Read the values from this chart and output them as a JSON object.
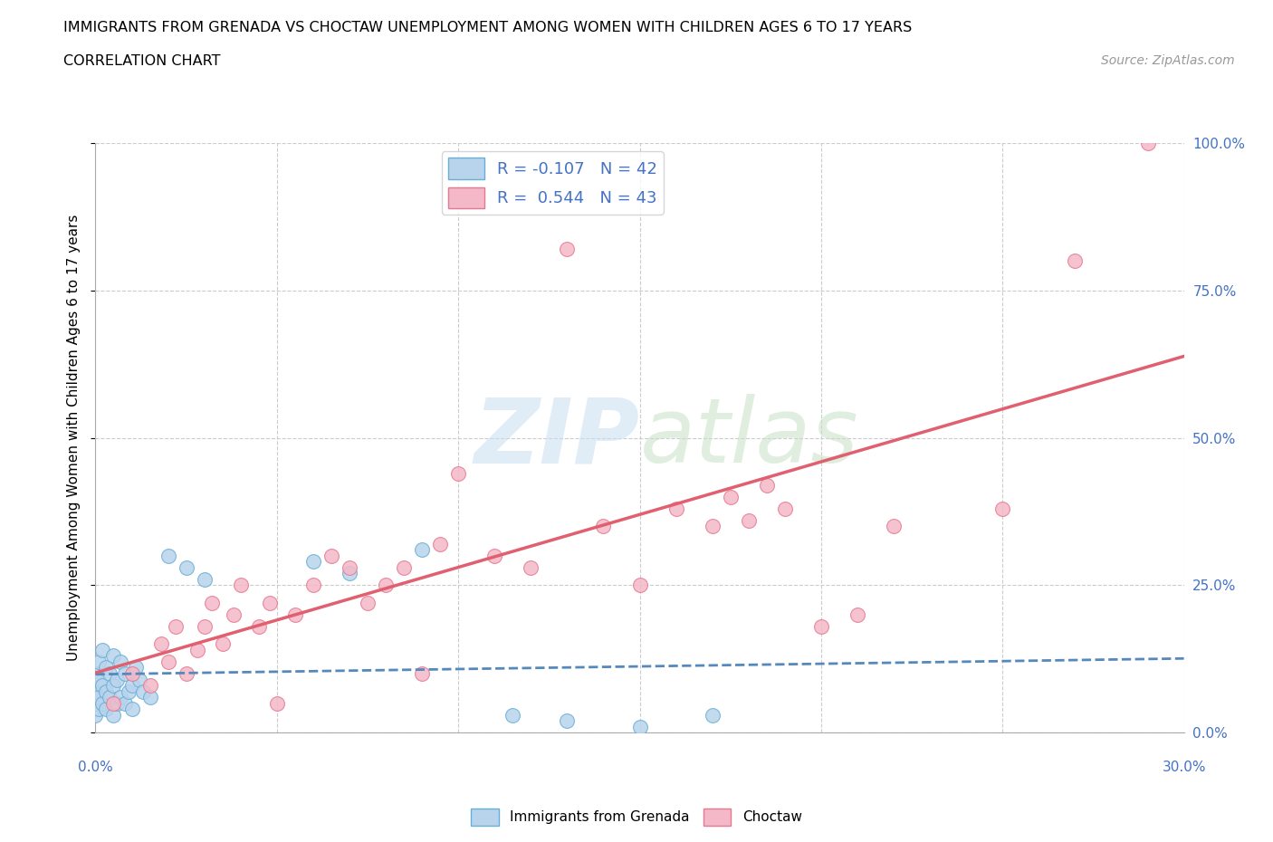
{
  "title1": "IMMIGRANTS FROM GRENADA VS CHOCTAW UNEMPLOYMENT AMONG WOMEN WITH CHILDREN AGES 6 TO 17 YEARS",
  "title2": "CORRELATION CHART",
  "source": "Source: ZipAtlas.com",
  "ylabel": "Unemployment Among Women with Children Ages 6 to 17 years",
  "xlim": [
    0.0,
    0.3
  ],
  "ylim": [
    0.0,
    1.0
  ],
  "xticks": [
    0.0,
    0.05,
    0.1,
    0.15,
    0.2,
    0.25,
    0.3
  ],
  "yticks": [
    0.0,
    0.25,
    0.5,
    0.75,
    1.0
  ],
  "r_grenada": -0.107,
  "n_grenada": 42,
  "r_choctaw": 0.544,
  "n_choctaw": 43,
  "color_grenada_fill": "#b8d4ec",
  "color_grenada_edge": "#6aaed6",
  "color_choctaw_fill": "#f4b8c8",
  "color_choctaw_edge": "#e87890",
  "color_grenada_line": "#5588bb",
  "color_choctaw_line": "#e06070",
  "watermark": "ZIPatlas",
  "legend_label_grenada": "Immigrants from Grenada",
  "legend_label_choctaw": "Choctaw",
  "title_fontsize": 11.5,
  "tick_color": "#4472c4",
  "tick_fontsize": 11,
  "grenada_x": [
    0.0,
    0.0,
    0.0,
    0.0,
    0.001,
    0.001,
    0.001,
    0.001,
    0.002,
    0.002,
    0.002,
    0.003,
    0.003,
    0.003,
    0.004,
    0.004,
    0.005,
    0.005,
    0.005,
    0.006,
    0.006,
    0.007,
    0.007,
    0.008,
    0.008,
    0.009,
    0.01,
    0.01,
    0.011,
    0.012,
    0.013,
    0.015,
    0.02,
    0.025,
    0.03,
    0.06,
    0.07,
    0.09,
    0.115,
    0.13,
    0.15,
    0.17
  ],
  "grenada_y": [
    0.03,
    0.05,
    0.07,
    0.1,
    0.04,
    0.06,
    0.09,
    0.12,
    0.05,
    0.08,
    0.14,
    0.04,
    0.07,
    0.11,
    0.06,
    0.1,
    0.03,
    0.08,
    0.13,
    0.05,
    0.09,
    0.06,
    0.12,
    0.05,
    0.1,
    0.07,
    0.04,
    0.08,
    0.11,
    0.09,
    0.07,
    0.06,
    0.3,
    0.28,
    0.26,
    0.29,
    0.27,
    0.31,
    0.03,
    0.02,
    0.01,
    0.03
  ],
  "choctaw_x": [
    0.005,
    0.01,
    0.015,
    0.018,
    0.02,
    0.022,
    0.025,
    0.028,
    0.03,
    0.032,
    0.035,
    0.038,
    0.04,
    0.045,
    0.048,
    0.05,
    0.055,
    0.06,
    0.065,
    0.07,
    0.075,
    0.08,
    0.085,
    0.09,
    0.095,
    0.1,
    0.11,
    0.12,
    0.13,
    0.14,
    0.15,
    0.16,
    0.17,
    0.175,
    0.18,
    0.185,
    0.19,
    0.2,
    0.21,
    0.22,
    0.25,
    0.27,
    0.29
  ],
  "choctaw_y": [
    0.05,
    0.1,
    0.08,
    0.15,
    0.12,
    0.18,
    0.1,
    0.14,
    0.18,
    0.22,
    0.15,
    0.2,
    0.25,
    0.18,
    0.22,
    0.05,
    0.2,
    0.25,
    0.3,
    0.28,
    0.22,
    0.25,
    0.28,
    0.1,
    0.32,
    0.44,
    0.3,
    0.28,
    0.82,
    0.35,
    0.25,
    0.38,
    0.35,
    0.4,
    0.36,
    0.42,
    0.38,
    0.18,
    0.2,
    0.35,
    0.38,
    0.8,
    1.0
  ]
}
